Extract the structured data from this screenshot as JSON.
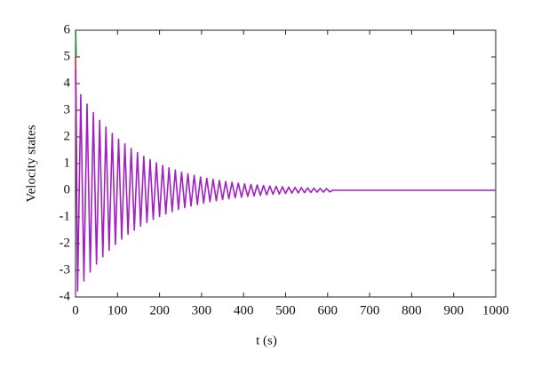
{
  "chart_data": {
    "type": "line",
    "ylabel": "Velocity states",
    "xlabel": "t (s)",
    "xlim": [
      0,
      1000
    ],
    "xticks": [
      0,
      100,
      200,
      300,
      400,
      500,
      600,
      700,
      800,
      900,
      1000
    ],
    "ylim": [
      -4,
      6
    ],
    "yticks": [
      -4,
      -3,
      -2,
      -1,
      0,
      1,
      2,
      3,
      4,
      5,
      6
    ],
    "grid": false,
    "series": [
      {
        "color": "#1a8c1a",
        "x": [
          0,
          0.5,
          1.5
        ],
        "values": [
          6,
          5.9,
          5
        ]
      },
      {
        "color": "#d02020",
        "x": [
          0,
          1,
          3
        ],
        "values": [
          5,
          4,
          0
        ]
      },
      {
        "color": "#a020c0",
        "x": [
          0,
          5,
          12.5,
          20,
          27.5,
          35,
          42.5,
          50,
          57.5,
          65,
          72.5,
          80,
          87.5,
          95,
          102.5,
          110,
          117.5,
          125,
          132.5,
          140,
          147.5,
          155,
          162.5,
          170,
          177.5,
          185,
          192.5,
          200,
          207.5,
          215,
          222.5,
          230,
          237.5,
          245,
          252.5,
          260,
          267.5,
          275,
          282.5,
          290,
          297.5,
          305,
          312.5,
          320,
          327.5,
          335,
          342.5,
          350,
          357.5,
          365,
          372.5,
          380,
          387.5,
          395,
          402.5,
          410,
          417.5,
          425,
          432.5,
          440,
          447.5,
          455,
          462.5,
          470,
          477.5,
          485,
          492.5,
          500,
          507.5,
          515,
          522.5,
          530,
          537.5,
          545,
          552.5,
          560,
          567.5,
          575,
          582.5,
          590,
          597.5,
          605,
          612.5,
          1000
        ],
        "values": [
          4.5,
          -3.77,
          3.58,
          -3.4,
          3.23,
          -3.06,
          2.91,
          -2.76,
          2.62,
          -2.49,
          2.37,
          -2.25,
          2.13,
          -2.03,
          1.92,
          -1.83,
          1.74,
          -1.65,
          1.57,
          -1.49,
          1.41,
          -1.34,
          1.27,
          -1.21,
          1.15,
          -1.09,
          1.03,
          -0.98,
          0.93,
          -0.89,
          0.84,
          -0.8,
          0.76,
          -0.72,
          0.68,
          -0.65,
          0.62,
          -0.59,
          0.56,
          -0.53,
          0.5,
          -0.48,
          0.45,
          -0.43,
          0.41,
          -0.39,
          0.37,
          -0.35,
          0.33,
          -0.32,
          0.3,
          -0.28,
          0.27,
          -0.26,
          0.24,
          -0.23,
          0.22,
          -0.21,
          0.2,
          -0.19,
          0.18,
          -0.17,
          0.16,
          -0.15,
          0.15,
          -0.14,
          0.13,
          -0.12,
          0.12,
          -0.11,
          0.11,
          -0.1,
          0.1,
          -0.09,
          0.09,
          -0.08,
          0.08,
          -0.07,
          0.07,
          -0.07,
          0.06,
          -0.06,
          0,
          0
        ]
      }
    ]
  }
}
